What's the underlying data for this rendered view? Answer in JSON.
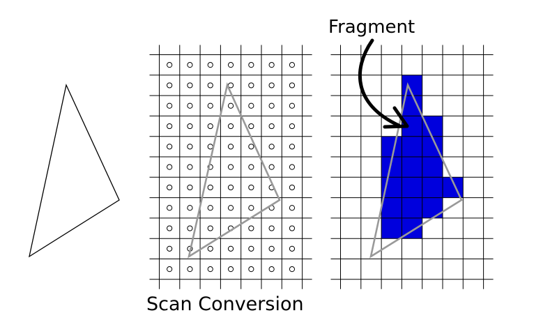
{
  "labels": {
    "fragment": "Fragment",
    "caption": "Scan Conversion"
  },
  "colors": {
    "outline": "#000000",
    "triangle_gray": "#999999",
    "fragment_fill": "#0000dd",
    "grid": "#000000"
  },
  "grids": {
    "rows": 11,
    "cols": 7
  },
  "fragments": [
    {
      "col": 3,
      "row": 1
    },
    {
      "col": 3,
      "row": 2
    },
    {
      "col": 3,
      "row": 3
    },
    {
      "col": 4,
      "row": 3
    },
    {
      "col": 2,
      "row": 4
    },
    {
      "col": 3,
      "row": 4
    },
    {
      "col": 4,
      "row": 4
    },
    {
      "col": 2,
      "row": 5
    },
    {
      "col": 3,
      "row": 5
    },
    {
      "col": 4,
      "row": 5
    },
    {
      "col": 2,
      "row": 6
    },
    {
      "col": 3,
      "row": 6
    },
    {
      "col": 4,
      "row": 6
    },
    {
      "col": 5,
      "row": 6
    },
    {
      "col": 2,
      "row": 7
    },
    {
      "col": 3,
      "row": 7
    },
    {
      "col": 4,
      "row": 7
    },
    {
      "col": 2,
      "row": 8
    },
    {
      "col": 3,
      "row": 8
    }
  ]
}
